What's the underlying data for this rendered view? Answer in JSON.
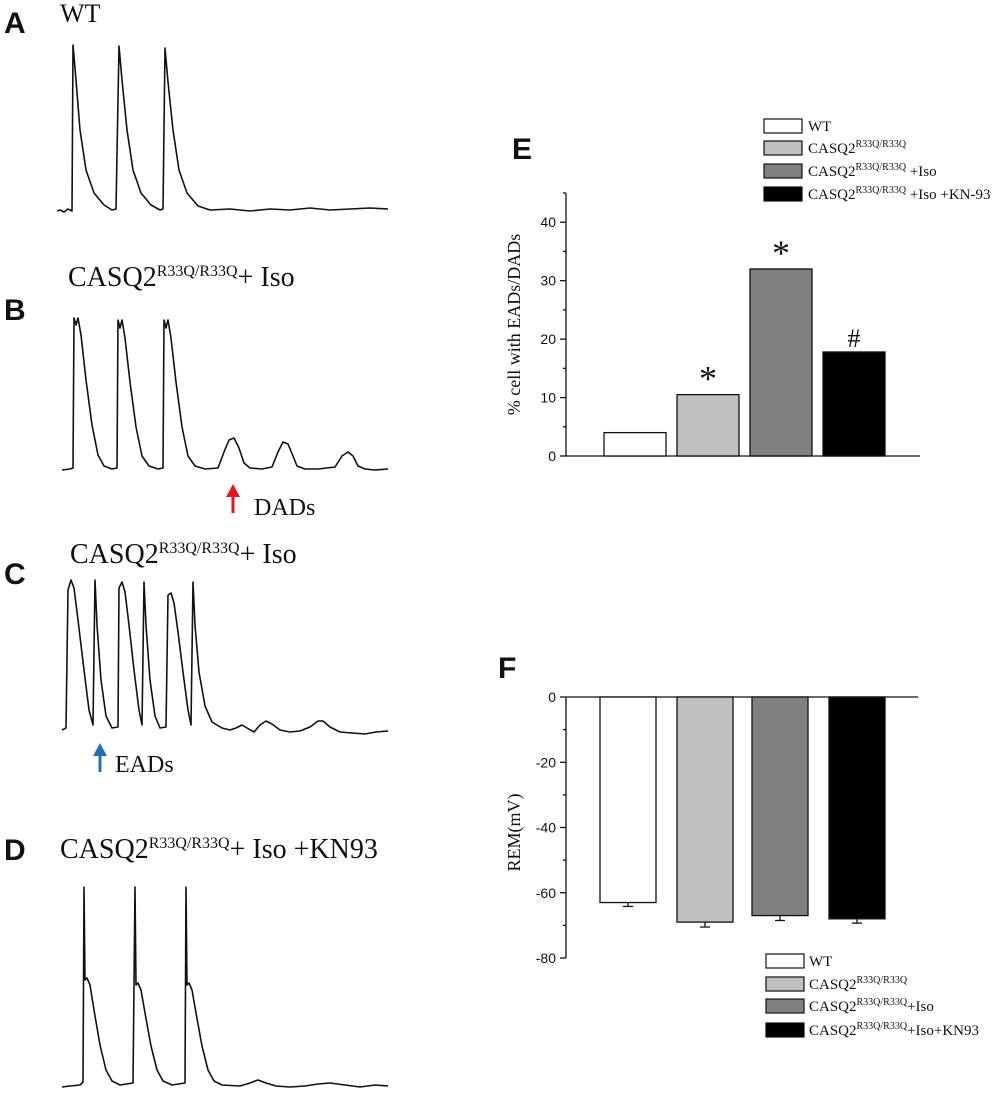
{
  "panels": {
    "A": {
      "letter": "A",
      "title": "WT"
    },
    "B": {
      "letter": "B",
      "title_main": "CASQ2",
      "title_sup": "R33Q/R33Q",
      "title_tail": "+ Iso",
      "annotation": "DADs",
      "annotation_color": "#e8141a"
    },
    "C": {
      "letter": "C",
      "title_main": "CASQ2",
      "title_sup": "R33Q/R33Q",
      "title_tail": "+ Iso",
      "annotation": "EADs",
      "annotation_color": "#1f6fbf"
    },
    "D": {
      "letter": "D",
      "title_main": "CASQ2",
      "title_sup": "R33Q/R33Q",
      "title_tail": "+ Iso +KN93"
    },
    "E": {
      "letter": "E"
    },
    "F": {
      "letter": "F"
    }
  },
  "chart_data": [
    {
      "panel": "E",
      "type": "bar",
      "ylabel": "% cell with EADs/DADs",
      "ylim": [
        0,
        45
      ],
      "yticks": [
        0,
        10,
        20,
        30,
        40
      ],
      "categories": [
        "WT",
        "CASQ2R33Q/R33Q",
        "CASQ2R33Q/R33Q +Iso",
        "CASQ2R33Q/R33Q +Iso +KN-93"
      ],
      "values": [
        4,
        10.5,
        32,
        17.8
      ],
      "colors": [
        "#ffffff",
        "#c0c0c0",
        "#808080",
        "#000000"
      ],
      "annotations": [
        "",
        "*",
        "*",
        "#"
      ],
      "legend": [
        {
          "main": "WT",
          "sup": "",
          "tail": ""
        },
        {
          "main": "CASQ2",
          "sup": "R33Q/R33Q",
          "tail": ""
        },
        {
          "main": "CASQ2",
          "sup": "R33Q/R33Q",
          "tail": " +Iso"
        },
        {
          "main": "CASQ2",
          "sup": "R33Q/R33Q",
          "tail": " +Iso +KN-93"
        }
      ],
      "legend_position": "top-right",
      "grid": false
    },
    {
      "panel": "F",
      "type": "bar",
      "ylabel": "REM(mV)",
      "ylim": [
        -80,
        0
      ],
      "yticks": [
        0,
        -20,
        -40,
        -60,
        -80
      ],
      "categories": [
        "WT",
        "CASQ2R33Q/R33Q",
        "CASQ2R33Q/R33Q+Iso",
        "CASQ2R33Q/R33Q+Iso+KN93"
      ],
      "values": [
        -63,
        -69,
        -67,
        -68
      ],
      "errors": [
        1.2,
        1.5,
        1.5,
        1.3
      ],
      "colors": [
        "#ffffff",
        "#c0c0c0",
        "#808080",
        "#000000"
      ],
      "legend": [
        {
          "main": "WT",
          "sup": "",
          "tail": ""
        },
        {
          "main": "CASQ2",
          "sup": "R33Q/R33Q",
          "tail": ""
        },
        {
          "main": "CASQ2",
          "sup": "R33Q/R33Q",
          "tail": "+Iso"
        },
        {
          "main": "CASQ2",
          "sup": "R33Q/R33Q",
          "tail": "+Iso+KN93"
        }
      ],
      "legend_position": "bottom-right",
      "grid": false
    }
  ]
}
